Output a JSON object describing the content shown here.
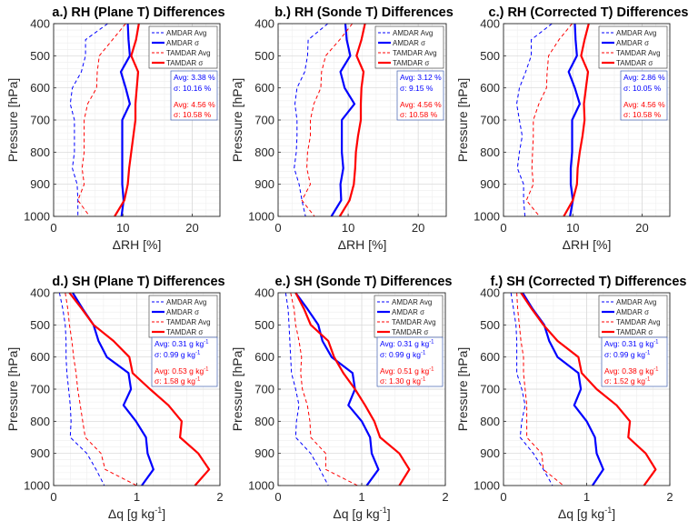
{
  "legend": [
    "AMDAR Avg",
    "AMDAR σ",
    "TAMDAR Avg",
    "TAMDAR σ"
  ],
  "colors": {
    "amdar": "#0000ff",
    "tamdar": "#ff0000",
    "axis": "#262626",
    "grid_major": "#d6d6d6",
    "grid_minor": "#eeeeee"
  },
  "chart_data": [
    {
      "type": "line",
      "title": "a.) RH (Plane T) Differences",
      "xlabel": {
        "text": "ΔRH [%]",
        "sup": "",
        "after": ""
      },
      "ylabel": "Pressure [hPa]",
      "xlim": [
        0,
        24
      ],
      "ylim": [
        400,
        1000
      ],
      "y_reversed": true,
      "xticks": [
        0,
        10,
        20
      ],
      "yticks": [
        400,
        500,
        600,
        700,
        800,
        900,
        1000
      ],
      "grid": true,
      "legend_position": "top-right",
      "levels": [
        400,
        450,
        500,
        550,
        600,
        650,
        700,
        750,
        800,
        850,
        900,
        950,
        1000
      ],
      "series": [
        {
          "name": "AMDAR Avg",
          "values": [
            7.8,
            4.6,
            4.6,
            4.0,
            2.7,
            2.4,
            3.0,
            3.0,
            3.0,
            2.7,
            3.4,
            3.5,
            3.5
          ]
        },
        {
          "name": "AMDAR σ",
          "values": [
            10.7,
            10.8,
            11.0,
            9.7,
            10.4,
            11.0,
            9.9,
            9.9,
            9.9,
            9.9,
            9.9,
            10.1,
            9.8
          ]
        },
        {
          "name": "TAMDAR Avg",
          "values": [
            10.4,
            8.5,
            6.6,
            6.3,
            6.2,
            4.9,
            4.4,
            4.4,
            4.4,
            4.1,
            4.4,
            3.5,
            5.2
          ]
        },
        {
          "name": "TAMDAR σ",
          "values": [
            12.3,
            11.9,
            11.2,
            12.2,
            12.0,
            11.8,
            11.8,
            11.5,
            11.2,
            10.9,
            10.7,
            10.2,
            8.8
          ]
        }
      ],
      "stats": {
        "amdar_avg": {
          "text": "Avg: 3.38 %",
          "sup": ""
        },
        "amdar_sigma": {
          "text": "σ: 10.16 %",
          "sup": ""
        },
        "tamdar_avg": {
          "text": "Avg: 4.56 %",
          "sup": ""
        },
        "tamdar_sigma": {
          "text": "σ: 10.58 %",
          "sup": ""
        }
      }
    },
    {
      "type": "line",
      "title": "b.) RH (Sonde T) Differences",
      "xlabel": {
        "text": "ΔRH [%]",
        "sup": "",
        "after": ""
      },
      "ylabel": "Pressure [hPa]",
      "xlim": [
        0,
        24
      ],
      "ylim": [
        400,
        1000
      ],
      "y_reversed": true,
      "xticks": [
        0,
        10,
        20
      ],
      "yticks": [
        400,
        500,
        600,
        700,
        800,
        900,
        1000
      ],
      "grid": true,
      "legend_position": "top-right",
      "levels": [
        400,
        450,
        500,
        550,
        600,
        650,
        700,
        750,
        800,
        850,
        900,
        950,
        1000
      ],
      "series": [
        {
          "name": "AMDAR Avg",
          "values": [
            7.1,
            4.3,
            4.2,
            3.8,
            2.7,
            2.4,
            2.7,
            2.7,
            2.6,
            2.3,
            3.0,
            3.4,
            3.9
          ]
        },
        {
          "name": "AMDAR σ",
          "values": [
            9.6,
            9.8,
            10.3,
            8.9,
            9.5,
            10.9,
            9.1,
            9.1,
            9.1,
            9.3,
            8.9,
            9.0,
            7.6
          ]
        },
        {
          "name": "TAMDAR Avg",
          "values": [
            10.6,
            8.8,
            6.8,
            6.2,
            6.1,
            5.1,
            4.6,
            4.6,
            4.2,
            4.1,
            4.6,
            3.4,
            5.2
          ]
        },
        {
          "name": "TAMDAR σ",
          "values": [
            12.4,
            11.9,
            11.2,
            12.2,
            11.9,
            11.8,
            11.8,
            11.4,
            11.1,
            11.0,
            10.8,
            10.2,
            8.8
          ]
        }
      ],
      "stats": {
        "amdar_avg": {
          "text": "Avg: 3.12 %",
          "sup": ""
        },
        "amdar_sigma": {
          "text": "σ: 9.15 %",
          "sup": ""
        },
        "tamdar_avg": {
          "text": "Avg: 4.56 %",
          "sup": ""
        },
        "tamdar_sigma": {
          "text": "σ: 10.58 %",
          "sup": ""
        }
      }
    },
    {
      "type": "line",
      "title": "c.) RH (Corrected T) Differences",
      "xlabel": {
        "text": "ΔRH [%]",
        "sup": "",
        "after": ""
      },
      "ylabel": "Pressure [hPa]",
      "xlim": [
        0,
        24
      ],
      "ylim": [
        400,
        1000
      ],
      "y_reversed": true,
      "xticks": [
        0,
        10,
        20
      ],
      "yticks": [
        400,
        500,
        600,
        700,
        800,
        900,
        1000
      ],
      "grid": true,
      "legend_position": "top-right",
      "levels": [
        400,
        450,
        500,
        550,
        600,
        650,
        700,
        750,
        800,
        850,
        900,
        950,
        1000
      ],
      "series": [
        {
          "name": "AMDAR Avg",
          "values": [
            7.0,
            4.0,
            4.0,
            3.2,
            2.3,
            1.9,
            2.3,
            2.7,
            2.3,
            2.0,
            2.9,
            2.9,
            3.1
          ]
        },
        {
          "name": "AMDAR σ",
          "values": [
            10.3,
            10.4,
            10.6,
            9.4,
            10.3,
            11.0,
            9.9,
            9.9,
            9.9,
            9.7,
            9.7,
            10.0,
            9.6
          ]
        },
        {
          "name": "TAMDAR Avg",
          "values": [
            9.9,
            8.0,
            6.5,
            6.3,
            6.2,
            5.1,
            4.3,
            4.3,
            4.2,
            4.1,
            4.3,
            3.3,
            5.2
          ]
        },
        {
          "name": "TAMDAR σ",
          "values": [
            12.3,
            11.7,
            11.2,
            12.2,
            11.9,
            11.6,
            11.7,
            11.4,
            11.0,
            10.7,
            10.6,
            10.0,
            8.7
          ]
        }
      ],
      "stats": {
        "amdar_avg": {
          "text": "Avg: 2.86 %",
          "sup": ""
        },
        "amdar_sigma": {
          "text": "σ: 10.05 %",
          "sup": ""
        },
        "tamdar_avg": {
          "text": "Avg: 4.56 %",
          "sup": ""
        },
        "tamdar_sigma": {
          "text": "σ: 10.58 %",
          "sup": ""
        }
      }
    },
    {
      "type": "line",
      "title": "d.) SH (Plane T) Differences",
      "xlabel": {
        "text": "Δq [g kg",
        "sup": "-1",
        "after": "]"
      },
      "ylabel": "Pressure [hPa]",
      "xlim": [
        0,
        2
      ],
      "ylim": [
        400,
        1000
      ],
      "y_reversed": true,
      "xticks": [
        0,
        1,
        2
      ],
      "yticks": [
        400,
        500,
        600,
        700,
        800,
        900,
        1000
      ],
      "grid": true,
      "legend_position": "top-right",
      "levels": [
        400,
        450,
        500,
        550,
        600,
        650,
        700,
        750,
        800,
        850,
        900,
        950,
        1000
      ],
      "series": [
        {
          "name": "AMDAR Avg",
          "values": [
            0.07,
            0.11,
            0.14,
            0.15,
            0.15,
            0.16,
            0.18,
            0.2,
            0.21,
            0.2,
            0.4,
            0.51,
            0.61
          ]
        },
        {
          "name": "AMDAR σ",
          "values": [
            0.23,
            0.35,
            0.48,
            0.54,
            0.64,
            0.9,
            0.93,
            0.84,
            0.99,
            1.11,
            1.13,
            1.2,
            1.06
          ]
        },
        {
          "name": "TAMDAR Avg",
          "values": [
            0.14,
            0.17,
            0.19,
            0.22,
            0.24,
            0.27,
            0.29,
            0.32,
            0.35,
            0.38,
            0.57,
            0.62,
            1.0
          ]
        },
        {
          "name": "TAMDAR σ",
          "values": [
            0.19,
            0.34,
            0.48,
            0.72,
            0.91,
            0.95,
            1.16,
            1.38,
            1.54,
            1.52,
            1.74,
            1.87,
            1.7
          ]
        }
      ],
      "stats": {
        "amdar_avg": {
          "text": "Avg: 0.31 g kg",
          "sup": "-1"
        },
        "amdar_sigma": {
          "text": "σ: 0.99 g kg",
          "sup": "-1"
        },
        "tamdar_avg": {
          "text": "Avg: 0.53 g kg",
          "sup": "-1"
        },
        "tamdar_sigma": {
          "text": "σ: 1.58 g kg",
          "sup": "-1"
        }
      }
    },
    {
      "type": "line",
      "title": "e.) SH (Sonde T) Differences",
      "xlabel": {
        "text": "Δq [g kg",
        "sup": "-1",
        "after": "]"
      },
      "ylabel": "Pressure [hPa]",
      "xlim": [
        0,
        2
      ],
      "ylim": [
        400,
        1000
      ],
      "y_reversed": true,
      "xticks": [
        0,
        1,
        2
      ],
      "yticks": [
        400,
        500,
        600,
        700,
        800,
        900,
        1000
      ],
      "grid": true,
      "legend_position": "top-right",
      "levels": [
        400,
        450,
        500,
        550,
        600,
        650,
        700,
        750,
        800,
        850,
        900,
        950,
        1000
      ],
      "series": [
        {
          "name": "AMDAR Avg",
          "values": [
            0.09,
            0.12,
            0.13,
            0.14,
            0.15,
            0.16,
            0.21,
            0.25,
            0.22,
            0.21,
            0.39,
            0.5,
            0.6
          ]
        },
        {
          "name": "AMDAR σ",
          "values": [
            0.21,
            0.35,
            0.48,
            0.53,
            0.64,
            0.89,
            0.92,
            0.84,
            1.0,
            1.1,
            1.12,
            1.2,
            1.06
          ]
        },
        {
          "name": "TAMDAR Avg",
          "values": [
            0.15,
            0.19,
            0.21,
            0.25,
            0.28,
            0.27,
            0.29,
            0.35,
            0.38,
            0.39,
            0.57,
            0.57,
            0.95
          ]
        },
        {
          "name": "TAMDAR σ",
          "values": [
            0.21,
            0.31,
            0.39,
            0.6,
            0.67,
            0.78,
            0.92,
            1.04,
            1.15,
            1.22,
            1.45,
            1.57,
            1.45
          ]
        }
      ],
      "stats": {
        "amdar_avg": {
          "text": "Avg: 0.31 g kg",
          "sup": "-1"
        },
        "amdar_sigma": {
          "text": "σ: 0.99 g kg",
          "sup": "-1"
        },
        "tamdar_avg": {
          "text": "Avg: 0.51 g kg",
          "sup": "-1"
        },
        "tamdar_sigma": {
          "text": "σ: 1.30 g kg",
          "sup": "-1"
        }
      }
    },
    {
      "type": "line",
      "title": "f.) SH (Corrected T) Differences",
      "xlabel": {
        "text": "Δq [g kg",
        "sup": "-1",
        "after": "]"
      },
      "ylabel": "Pressure [hPa]",
      "xlim": [
        0,
        2
      ],
      "ylim": [
        400,
        1000
      ],
      "y_reversed": true,
      "xticks": [
        0,
        1,
        2
      ],
      "yticks": [
        400,
        500,
        600,
        700,
        800,
        900,
        1000
      ],
      "grid": true,
      "legend_position": "top-right",
      "levels": [
        400,
        450,
        500,
        550,
        600,
        650,
        700,
        750,
        800,
        850,
        900,
        950,
        1000
      ],
      "series": [
        {
          "name": "AMDAR Avg",
          "values": [
            0.09,
            0.12,
            0.15,
            0.16,
            0.16,
            0.16,
            0.22,
            0.26,
            0.22,
            0.2,
            0.36,
            0.48,
            0.59
          ]
        },
        {
          "name": "AMDAR σ",
          "values": [
            0.23,
            0.35,
            0.49,
            0.55,
            0.65,
            0.9,
            0.93,
            0.85,
            1.0,
            1.1,
            1.12,
            1.2,
            1.07
          ]
        },
        {
          "name": "TAMDAR Avg",
          "values": [
            0.16,
            0.17,
            0.19,
            0.21,
            0.24,
            0.24,
            0.26,
            0.28,
            0.28,
            0.28,
            0.46,
            0.48,
            0.72
          ]
        },
        {
          "name": "TAMDAR σ",
          "values": [
            0.21,
            0.34,
            0.48,
            0.65,
            0.9,
            0.94,
            1.12,
            1.36,
            1.52,
            1.5,
            1.71,
            1.83,
            1.69
          ]
        }
      ],
      "stats": {
        "amdar_avg": {
          "text": "Avg: 0.31 g kg",
          "sup": "-1"
        },
        "amdar_sigma": {
          "text": "σ: 0.99 g kg",
          "sup": "-1"
        },
        "tamdar_avg": {
          "text": "Avg: 0.38 g kg",
          "sup": "-1"
        },
        "tamdar_sigma": {
          "text": "σ: 1.52 g kg",
          "sup": "-1"
        }
      }
    }
  ]
}
